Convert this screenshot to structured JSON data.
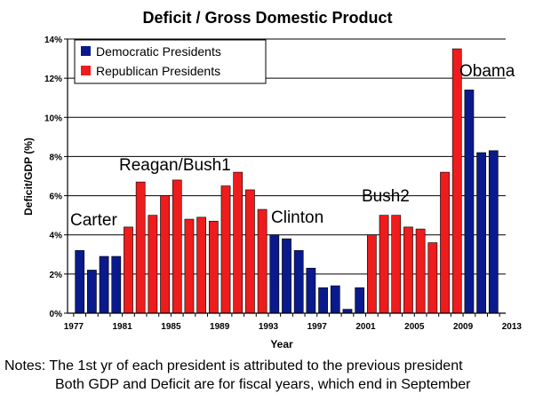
{
  "chart_data": {
    "type": "bar",
    "title": "Deficit / Gross Domestic Product",
    "xlabel": "Year",
    "ylabel": "Deficit/GDP  (%)",
    "ylim": [
      0,
      14
    ],
    "yticks": [
      "0%",
      "2%",
      "4%",
      "6%",
      "8%",
      "10%",
      "12%",
      "14%"
    ],
    "xticks": [
      "1977",
      "1981",
      "1985",
      "1989",
      "1993",
      "1997",
      "2001",
      "2005",
      "2009",
      "2013"
    ],
    "grid": true,
    "legend": {
      "placement": "top-left",
      "entries": [
        {
          "name": "Democratic Presidents",
          "color": "#0a1a8c"
        },
        {
          "name": "Republican Presidents",
          "color": "#ee1c1c"
        }
      ]
    },
    "years": [
      1978,
      1979,
      1980,
      1981,
      1982,
      1983,
      1984,
      1985,
      1986,
      1987,
      1988,
      1989,
      1990,
      1991,
      1992,
      1993,
      1994,
      1995,
      1996,
      1997,
      1998,
      1999,
      2000,
      2001,
      2002,
      2003,
      2004,
      2005,
      2006,
      2007,
      2008,
      2009,
      2010,
      2011,
      2012
    ],
    "values": [
      3.2,
      2.2,
      2.9,
      2.9,
      4.4,
      6.7,
      5.0,
      6.0,
      6.8,
      4.8,
      4.9,
      4.7,
      6.5,
      7.2,
      6.3,
      5.3,
      4.0,
      3.8,
      3.2,
      2.3,
      1.3,
      1.4,
      0.2,
      1.3,
      4.0,
      5.0,
      5.0,
      4.4,
      4.3,
      3.6,
      7.2,
      13.5,
      11.4,
      8.2,
      8.3
    ],
    "party": [
      "D",
      "D",
      "D",
      "D",
      "R",
      "R",
      "R",
      "R",
      "R",
      "R",
      "R",
      "R",
      "R",
      "R",
      "R",
      "R",
      "D",
      "D",
      "D",
      "D",
      "D",
      "D",
      "D",
      "D",
      "R",
      "R",
      "R",
      "R",
      "R",
      "R",
      "R",
      "R",
      "D",
      "D",
      "D"
    ],
    "annotations": [
      "Carter",
      "Reagan/Bush1",
      "Clinton",
      "Bush2",
      "Obama"
    ]
  },
  "notes": {
    "line1": "Notes: The 1st yr of each president is attributed to the previous president",
    "line2": "Both GDP and Deficit are for fiscal years, which end in September"
  }
}
